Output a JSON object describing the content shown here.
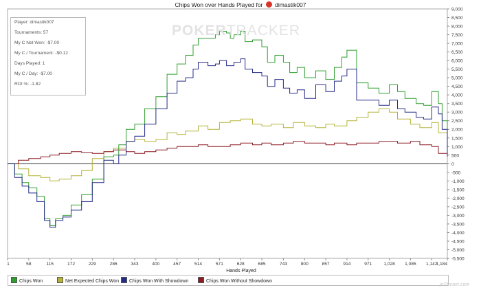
{
  "chart_data": {
    "type": "line",
    "title_prefix": "Chips Won over Hands Played for",
    "player_name": "dimastik007",
    "xlabel": "Hands Played",
    "ylabel": "",
    "x_ticks": [
      "1",
      "58",
      "115",
      "172",
      "229",
      "286",
      "343",
      "400",
      "457",
      "514",
      "571",
      "628",
      "685",
      "743",
      "800",
      "857",
      "914",
      "971",
      "1,028",
      "1,085",
      "1,142",
      "1,184"
    ],
    "xlim": [
      1,
      1184
    ],
    "ylim": [
      -5500,
      9000
    ],
    "y_ticks": [
      "9,000",
      "8,500",
      "8,000",
      "7,500",
      "7,000",
      "6,500",
      "6,000",
      "5,500",
      "5,000",
      "4,500",
      "4,000",
      "3,500",
      "3,000",
      "2,500",
      "2,000",
      "1,500",
      "1,000",
      "500",
      "0",
      "-500",
      "-1,000",
      "-1,500",
      "-2,000",
      "-2,500",
      "-3,000",
      "-3,500",
      "-4,000",
      "-4,500",
      "-5,000",
      "-5,500"
    ],
    "grid": false,
    "legend_position": "bottom",
    "series": [
      {
        "name": "Chips Won",
        "color": "#2f9e2f",
        "x": [
          1,
          20,
          40,
          58,
          80,
          100,
          115,
          130,
          150,
          172,
          200,
          229,
          260,
          286,
          300,
          320,
          343,
          370,
          400,
          430,
          457,
          480,
          500,
          514,
          540,
          560,
          571,
          590,
          600,
          610,
          628,
          640,
          660,
          685,
          700,
          720,
          743,
          760,
          780,
          800,
          830,
          857,
          880,
          900,
          914,
          940,
          971,
          1000,
          1028,
          1050,
          1070,
          1085,
          1100,
          1120,
          1142,
          1160,
          1170,
          1184
        ],
        "y": [
          0,
          -600,
          -1100,
          -1400,
          -1900,
          -3200,
          -3600,
          -3200,
          -3000,
          -2400,
          -1800,
          -900,
          400,
          500,
          1100,
          2000,
          2300,
          3200,
          3900,
          5200,
          5800,
          6300,
          6900,
          7300,
          7300,
          7500,
          7700,
          7600,
          7300,
          7500,
          7700,
          7100,
          7200,
          6800,
          5900,
          6300,
          5900,
          5300,
          5600,
          5000,
          5400,
          4900,
          5600,
          6200,
          6600,
          4700,
          4400,
          4100,
          4600,
          4200,
          3800,
          3800,
          3500,
          3400,
          4200,
          3500,
          2500,
          1000
        ]
      },
      {
        "name": "Net Expected Chips Won",
        "color": "#b5b33a",
        "x": [
          1,
          30,
          58,
          90,
          115,
          140,
          172,
          200,
          229,
          260,
          286,
          320,
          343,
          370,
          400,
          430,
          457,
          480,
          514,
          540,
          571,
          600,
          628,
          660,
          685,
          710,
          743,
          770,
          800,
          830,
          857,
          880,
          914,
          940,
          971,
          1000,
          1028,
          1050,
          1085,
          1110,
          1142,
          1160,
          1184
        ],
        "y": [
          0,
          -300,
          -700,
          -800,
          -1000,
          -900,
          -700,
          -400,
          300,
          700,
          900,
          1300,
          1400,
          1300,
          1400,
          1800,
          1700,
          1900,
          2200,
          2000,
          2400,
          2500,
          2600,
          2300,
          2200,
          2300,
          2100,
          2400,
          2200,
          2100,
          2300,
          2200,
          2500,
          2700,
          3000,
          3200,
          3000,
          2600,
          2300,
          2100,
          2400,
          1800,
          1100
        ]
      },
      {
        "name": "Chips Won With Showdown",
        "color": "#242a86",
        "x": [
          1,
          20,
          40,
          58,
          80,
          100,
          115,
          130,
          150,
          172,
          200,
          229,
          260,
          286,
          300,
          320,
          343,
          370,
          400,
          430,
          457,
          480,
          500,
          514,
          540,
          560,
          571,
          590,
          610,
          628,
          640,
          660,
          685,
          700,
          720,
          743,
          760,
          780,
          800,
          830,
          857,
          880,
          900,
          914,
          940,
          971,
          1000,
          1028,
          1050,
          1070,
          1085,
          1100,
          1120,
          1142,
          1160,
          1170,
          1184
        ],
        "y": [
          0,
          -800,
          -1300,
          -1700,
          -2200,
          -3300,
          -3700,
          -3300,
          -3100,
          -2700,
          -2200,
          -1100,
          200,
          0,
          500,
          1300,
          1600,
          2300,
          3200,
          4100,
          4800,
          5000,
          5500,
          5900,
          5700,
          5800,
          6000,
          5700,
          5900,
          6100,
          5500,
          5300,
          5100,
          4500,
          4900,
          4400,
          4100,
          4300,
          3800,
          4600,
          4200,
          4800,
          5100,
          5500,
          3700,
          3700,
          3400,
          3700,
          3200,
          3000,
          3000,
          2700,
          2600,
          3300,
          2900,
          2000,
          500
        ]
      },
      {
        "name": "Chips Won Without Showdown",
        "color": "#8a1c24",
        "x": [
          1,
          30,
          58,
          90,
          115,
          140,
          172,
          200,
          229,
          260,
          286,
          320,
          343,
          370,
          400,
          430,
          457,
          480,
          514,
          540,
          571,
          600,
          628,
          660,
          685,
          710,
          743,
          770,
          800,
          830,
          857,
          880,
          914,
          940,
          971,
          1000,
          1028,
          1050,
          1085,
          1110,
          1142,
          1160,
          1184
        ],
        "y": [
          0,
          200,
          300,
          400,
          500,
          600,
          700,
          650,
          600,
          700,
          800,
          700,
          600,
          700,
          800,
          900,
          1000,
          1000,
          1100,
          1000,
          1000,
          1100,
          1200,
          1100,
          1200,
          1100,
          1200,
          1300,
          1200,
          1200,
          1100,
          1200,
          1100,
          1200,
          1200,
          1300,
          1300,
          1200,
          1300,
          1100,
          1000,
          600,
          400
        ]
      }
    ]
  },
  "stats": [
    "Player: dimastik007",
    "Tournaments: 57",
    "My C Net Won: -$7.00",
    "My C / Tournament: -$0.12",
    "Days Played: 1",
    "My C / Day: -$7.00",
    "ROI %: -1.82"
  ],
  "watermark": {
    "part1": "POKER",
    "part2": "TRACKER"
  },
  "credit": "jeStream.com"
}
